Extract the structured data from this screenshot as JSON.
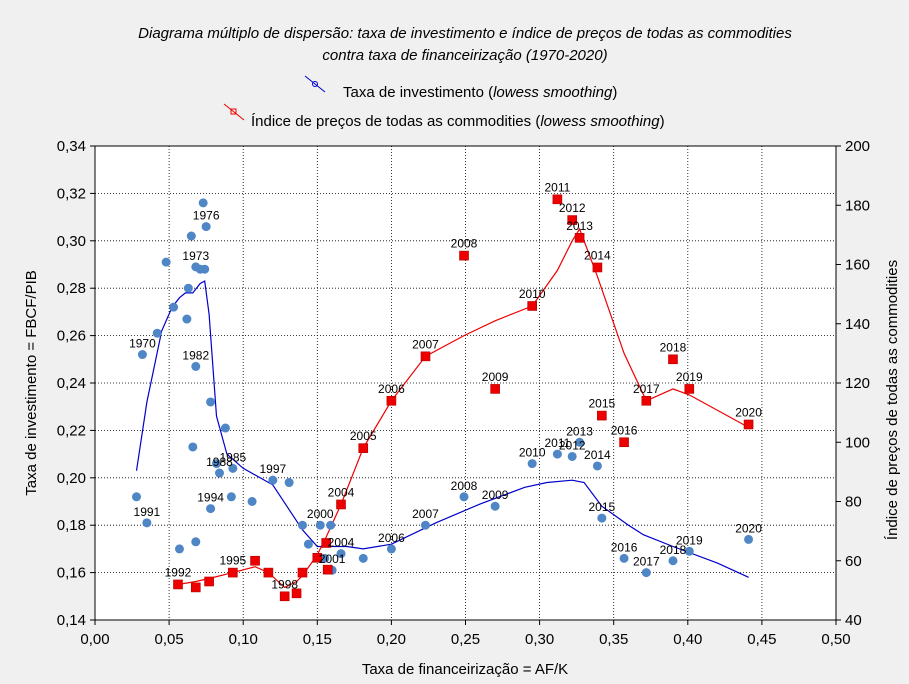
{
  "chart_data": {
    "type": "scatter",
    "title_line1": "Diagrama múltiplo de dispersão: taxa de investimento e índice de preços de todas as commodities",
    "title_line2": "contra taxa de financeirização (1970-2020)",
    "legend": [
      {
        "label_pre": "Taxa de investimento (",
        "label_italic": "lowess smoothing",
        "label_post": ")",
        "color": "#0000cc"
      },
      {
        "label_pre": "Índice de preços de todas as commodities (",
        "label_italic": "lowess smoothing",
        "label_post": ")",
        "color": "#ee0000"
      }
    ],
    "xlabel": "Taxa de financeirização = AF/K",
    "ylabel": "Taxa de investimento = FBCF/PIB",
    "y2label": "Índice de preços de todas as commodities",
    "xlim": [
      0,
      0.5
    ],
    "ylim": [
      0.14,
      0.34
    ],
    "y2lim": [
      40,
      200
    ],
    "xticks": [
      "0,00",
      "0,05",
      "0,10",
      "0,15",
      "0,20",
      "0,25",
      "0,30",
      "0,35",
      "0,40",
      "0,45",
      "0,50"
    ],
    "yticks": [
      "0,14",
      "0,16",
      "0,18",
      "0,20",
      "0,22",
      "0,24",
      "0,26",
      "0,28",
      "0,30",
      "0,32",
      "0,34"
    ],
    "y2ticks": [
      "40",
      "60",
      "80",
      "100",
      "120",
      "140",
      "160",
      "180",
      "200"
    ],
    "grid": true,
    "investment_points": [
      {
        "x": 0.032,
        "y": 0.252,
        "label": "1970"
      },
      {
        "x": 0.042,
        "y": 0.261,
        "label": ""
      },
      {
        "x": 0.048,
        "y": 0.291,
        "label": ""
      },
      {
        "x": 0.053,
        "y": 0.272,
        "label": ""
      },
      {
        "x": 0.062,
        "y": 0.267,
        "label": ""
      },
      {
        "x": 0.063,
        "y": 0.28,
        "label": ""
      },
      {
        "x": 0.068,
        "y": 0.289,
        "label": "1973"
      },
      {
        "x": 0.071,
        "y": 0.288,
        "label": ""
      },
      {
        "x": 0.074,
        "y": 0.288,
        "label": ""
      },
      {
        "x": 0.065,
        "y": 0.302,
        "label": ""
      },
      {
        "x": 0.073,
        "y": 0.316,
        "label": ""
      },
      {
        "x": 0.075,
        "y": 0.306,
        "label": "1976"
      },
      {
        "x": 0.068,
        "y": 0.247,
        "label": "1982"
      },
      {
        "x": 0.078,
        "y": 0.232,
        "label": ""
      },
      {
        "x": 0.088,
        "y": 0.221,
        "label": ""
      },
      {
        "x": 0.066,
        "y": 0.213,
        "label": ""
      },
      {
        "x": 0.082,
        "y": 0.206,
        "label": ""
      },
      {
        "x": 0.084,
        "y": 0.202,
        "label": "1988"
      },
      {
        "x": 0.093,
        "y": 0.204,
        "label": "1985"
      },
      {
        "x": 0.092,
        "y": 0.192,
        "label": ""
      },
      {
        "x": 0.078,
        "y": 0.187,
        "label": "1994"
      },
      {
        "x": 0.106,
        "y": 0.19,
        "label": ""
      },
      {
        "x": 0.12,
        "y": 0.199,
        "label": "1997"
      },
      {
        "x": 0.131,
        "y": 0.198,
        "label": ""
      },
      {
        "x": 0.028,
        "y": 0.192,
        "label": ""
      },
      {
        "x": 0.035,
        "y": 0.181,
        "label": "1991"
      },
      {
        "x": 0.057,
        "y": 0.17,
        "label": ""
      },
      {
        "x": 0.068,
        "y": 0.173,
        "label": ""
      },
      {
        "x": 0.14,
        "y": 0.18,
        "label": ""
      },
      {
        "x": 0.152,
        "y": 0.18,
        "label": "2000"
      },
      {
        "x": 0.159,
        "y": 0.18,
        "label": ""
      },
      {
        "x": 0.144,
        "y": 0.172,
        "label": ""
      },
      {
        "x": 0.155,
        "y": 0.166,
        "label": ""
      },
      {
        "x": 0.166,
        "y": 0.168,
        "label": "2004"
      },
      {
        "x": 0.16,
        "y": 0.161,
        "label": "2001"
      },
      {
        "x": 0.181,
        "y": 0.166,
        "label": ""
      },
      {
        "x": 0.2,
        "y": 0.17,
        "label": "2006"
      },
      {
        "x": 0.223,
        "y": 0.18,
        "label": "2007"
      },
      {
        "x": 0.249,
        "y": 0.192,
        "label": "2008"
      },
      {
        "x": 0.27,
        "y": 0.188,
        "label": "2009"
      },
      {
        "x": 0.295,
        "y": 0.206,
        "label": "2010"
      },
      {
        "x": 0.312,
        "y": 0.21,
        "label": "2011"
      },
      {
        "x": 0.322,
        "y": 0.209,
        "label": "2012"
      },
      {
        "x": 0.327,
        "y": 0.215,
        "label": "2013"
      },
      {
        "x": 0.339,
        "y": 0.205,
        "label": "2014"
      },
      {
        "x": 0.342,
        "y": 0.183,
        "label": "2015"
      },
      {
        "x": 0.357,
        "y": 0.166,
        "label": "2016"
      },
      {
        "x": 0.372,
        "y": 0.16,
        "label": "2017"
      },
      {
        "x": 0.39,
        "y": 0.165,
        "label": "2018"
      },
      {
        "x": 0.401,
        "y": 0.169,
        "label": "2019"
      },
      {
        "x": 0.441,
        "y": 0.174,
        "label": "2020"
      }
    ],
    "investment_lowess": [
      [
        0.028,
        0.203
      ],
      [
        0.035,
        0.232
      ],
      [
        0.045,
        0.262
      ],
      [
        0.052,
        0.272
      ],
      [
        0.057,
        0.276
      ],
      [
        0.061,
        0.278
      ],
      [
        0.066,
        0.278
      ],
      [
        0.071,
        0.282
      ],
      [
        0.074,
        0.283
      ],
      [
        0.077,
        0.269
      ],
      [
        0.082,
        0.226
      ],
      [
        0.089,
        0.21
      ],
      [
        0.1,
        0.204
      ],
      [
        0.12,
        0.197
      ],
      [
        0.14,
        0.178
      ],
      [
        0.15,
        0.171
      ],
      [
        0.17,
        0.171
      ],
      [
        0.181,
        0.17
      ],
      [
        0.2,
        0.172
      ],
      [
        0.23,
        0.181
      ],
      [
        0.26,
        0.189
      ],
      [
        0.29,
        0.196
      ],
      [
        0.305,
        0.198
      ],
      [
        0.322,
        0.199
      ],
      [
        0.33,
        0.198
      ],
      [
        0.342,
        0.188
      ],
      [
        0.36,
        0.18
      ],
      [
        0.37,
        0.176
      ],
      [
        0.39,
        0.171
      ],
      [
        0.42,
        0.164
      ],
      [
        0.441,
        0.158
      ]
    ],
    "commodity_points": [
      {
        "x": 0.056,
        "y2": 52,
        "label": "1992"
      },
      {
        "x": 0.068,
        "y2": 51,
        "label": ""
      },
      {
        "x": 0.077,
        "y2": 53,
        "label": ""
      },
      {
        "x": 0.093,
        "y2": 56,
        "label": "1995"
      },
      {
        "x": 0.108,
        "y2": 60,
        "label": ""
      },
      {
        "x": 0.117,
        "y2": 56,
        "label": ""
      },
      {
        "x": 0.128,
        "y2": 48,
        "label": "1998"
      },
      {
        "x": 0.136,
        "y2": 49,
        "label": ""
      },
      {
        "x": 0.14,
        "y2": 56,
        "label": ""
      },
      {
        "x": 0.15,
        "y2": 61,
        "label": ""
      },
      {
        "x": 0.156,
        "y2": 66,
        "label": ""
      },
      {
        "x": 0.157,
        "y2": 57,
        "label": ""
      },
      {
        "x": 0.166,
        "y2": 79,
        "label": "2004"
      },
      {
        "x": 0.181,
        "y2": 98,
        "label": "2005"
      },
      {
        "x": 0.2,
        "y2": 114,
        "label": "2006"
      },
      {
        "x": 0.223,
        "y2": 129,
        "label": "2007"
      },
      {
        "x": 0.249,
        "y2": 163,
        "label": "2008"
      },
      {
        "x": 0.27,
        "y2": 118,
        "label": "2009"
      },
      {
        "x": 0.295,
        "y2": 146,
        "label": "2010"
      },
      {
        "x": 0.312,
        "y2": 182,
        "label": "2011"
      },
      {
        "x": 0.322,
        "y2": 175,
        "label": "2012"
      },
      {
        "x": 0.327,
        "y2": 169,
        "label": "2013"
      },
      {
        "x": 0.339,
        "y2": 159,
        "label": "2014"
      },
      {
        "x": 0.342,
        "y2": 109,
        "label": "2015"
      },
      {
        "x": 0.357,
        "y2": 100,
        "label": "2016"
      },
      {
        "x": 0.372,
        "y2": 114,
        "label": "2017"
      },
      {
        "x": 0.39,
        "y2": 128,
        "label": "2018"
      },
      {
        "x": 0.401,
        "y2": 118,
        "label": "2019"
      },
      {
        "x": 0.441,
        "y2": 106,
        "label": "2020"
      }
    ],
    "commodity_lowess": [
      [
        0.056,
        52
      ],
      [
        0.068,
        53
      ],
      [
        0.077,
        54
      ],
      [
        0.093,
        56
      ],
      [
        0.108,
        58
      ],
      [
        0.117,
        56
      ],
      [
        0.128,
        51
      ],
      [
        0.136,
        53
      ],
      [
        0.14,
        55
      ],
      [
        0.15,
        62
      ],
      [
        0.156,
        68
      ],
      [
        0.166,
        79
      ],
      [
        0.181,
        98
      ],
      [
        0.2,
        114
      ],
      [
        0.223,
        129
      ],
      [
        0.249,
        136
      ],
      [
        0.27,
        141
      ],
      [
        0.295,
        146
      ],
      [
        0.312,
        158
      ],
      [
        0.322,
        168
      ],
      [
        0.327,
        172
      ],
      [
        0.339,
        156
      ],
      [
        0.357,
        130
      ],
      [
        0.372,
        114
      ],
      [
        0.39,
        118
      ],
      [
        0.401,
        116
      ],
      [
        0.441,
        105
      ]
    ]
  }
}
